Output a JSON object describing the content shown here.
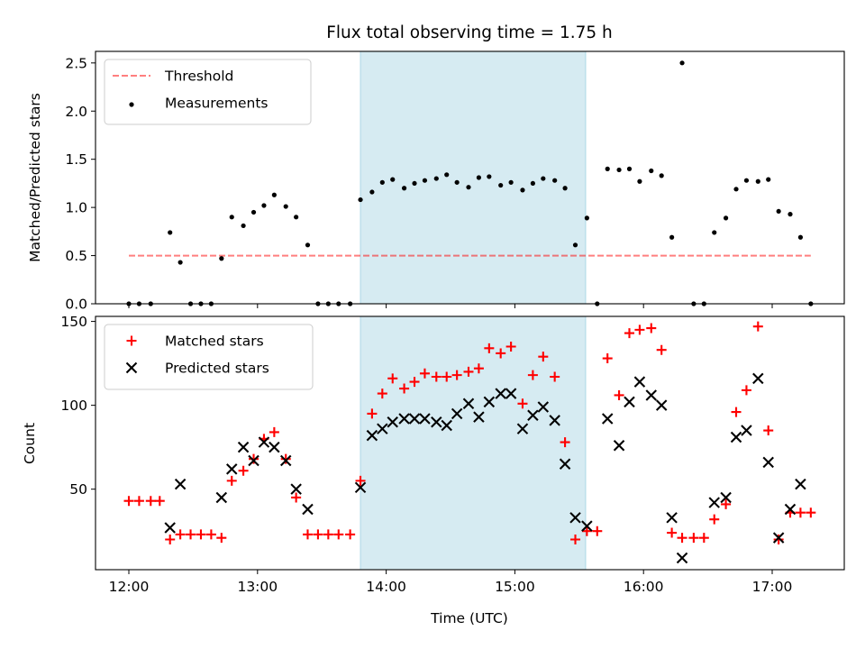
{
  "chart_data": [
    {
      "type": "scatter",
      "title": "Flux total observing time = 1.75 h",
      "xlabel": "",
      "ylabel": "Matched/Predicted stars",
      "xlim": [
        11.75,
        17.58
      ],
      "ylim": [
        0,
        2.62
      ],
      "yticks": [
        0.0,
        0.5,
        1.0,
        1.5,
        2.0,
        2.5
      ],
      "ytick_labels": [
        "0.0",
        "0.5",
        "1.0",
        "1.5",
        "2.0",
        "2.5"
      ],
      "highlight_span": {
        "x_start": 13.8,
        "x_end": 15.55,
        "color": "#add8e6"
      },
      "threshold": {
        "name": "Threshold",
        "value": 0.5,
        "x_start": 12.0,
        "x_end": 17.3,
        "color": "#ff0000"
      },
      "series": [
        {
          "name": "Measurements",
          "marker": "dot",
          "color": "#000000",
          "points": [
            [
              12.0,
              0.0
            ],
            [
              12.08,
              0.0
            ],
            [
              12.17,
              0.0
            ],
            [
              12.32,
              0.74
            ],
            [
              12.4,
              0.43
            ],
            [
              12.48,
              0.0
            ],
            [
              12.56,
              0.0
            ],
            [
              12.64,
              0.0
            ],
            [
              12.72,
              0.47
            ],
            [
              12.8,
              0.9
            ],
            [
              12.89,
              0.81
            ],
            [
              12.97,
              0.95
            ],
            [
              13.05,
              1.02
            ],
            [
              13.13,
              1.13
            ],
            [
              13.22,
              1.01
            ],
            [
              13.3,
              0.9
            ],
            [
              13.39,
              0.61
            ],
            [
              13.47,
              0.0
            ],
            [
              13.55,
              0.0
            ],
            [
              13.63,
              0.0
            ],
            [
              13.72,
              0.0
            ],
            [
              13.8,
              1.08
            ],
            [
              13.89,
              1.16
            ],
            [
              13.97,
              1.26
            ],
            [
              14.05,
              1.29
            ],
            [
              14.14,
              1.2
            ],
            [
              14.22,
              1.25
            ],
            [
              14.3,
              1.28
            ],
            [
              14.39,
              1.3
            ],
            [
              14.47,
              1.34
            ],
            [
              14.55,
              1.26
            ],
            [
              14.64,
              1.21
            ],
            [
              14.72,
              1.31
            ],
            [
              14.8,
              1.32
            ],
            [
              14.89,
              1.23
            ],
            [
              14.97,
              1.26
            ],
            [
              15.06,
              1.18
            ],
            [
              15.14,
              1.25
            ],
            [
              15.22,
              1.3
            ],
            [
              15.31,
              1.28
            ],
            [
              15.39,
              1.2
            ],
            [
              15.47,
              0.61
            ],
            [
              15.56,
              0.89
            ],
            [
              15.64,
              0.0
            ],
            [
              15.72,
              1.4
            ],
            [
              15.81,
              1.39
            ],
            [
              15.89,
              1.4
            ],
            [
              15.97,
              1.27
            ],
            [
              16.06,
              1.38
            ],
            [
              16.14,
              1.33
            ],
            [
              16.22,
              0.69
            ],
            [
              16.3,
              2.5
            ],
            [
              16.39,
              0.0
            ],
            [
              16.47,
              0.0
            ],
            [
              16.55,
              0.74
            ],
            [
              16.64,
              0.89
            ],
            [
              16.72,
              1.19
            ],
            [
              16.8,
              1.28
            ],
            [
              16.89,
              1.27
            ],
            [
              16.97,
              1.29
            ],
            [
              17.05,
              0.96
            ],
            [
              17.14,
              0.93
            ],
            [
              17.22,
              0.69
            ],
            [
              17.3,
              0.0
            ]
          ]
        }
      ],
      "legend": {
        "position": "top-left",
        "entries": [
          "Threshold",
          "Measurements"
        ]
      }
    },
    {
      "type": "scatter",
      "title": "",
      "xlabel": "Time (UTC)",
      "ylabel": "Count",
      "xlim": [
        11.75,
        17.58
      ],
      "ylim": [
        2,
        153
      ],
      "yticks": [
        50,
        100,
        150
      ],
      "ytick_labels": [
        "50",
        "100",
        "150"
      ],
      "xticks": [
        12,
        13,
        14,
        15,
        16,
        17
      ],
      "xtick_labels": [
        "12:00",
        "13:00",
        "14:00",
        "15:00",
        "16:00",
        "17:00"
      ],
      "highlight_span": {
        "x_start": 13.8,
        "x_end": 15.55,
        "color": "#add8e6"
      },
      "series": [
        {
          "name": "Matched stars",
          "marker": "plus",
          "color": "#ff0000",
          "points": [
            [
              12.0,
              43
            ],
            [
              12.08,
              43
            ],
            [
              12.17,
              43
            ],
            [
              12.24,
              43
            ],
            [
              12.32,
              20
            ],
            [
              12.4,
              23
            ],
            [
              12.48,
              23
            ],
            [
              12.56,
              23
            ],
            [
              12.64,
              23
            ],
            [
              12.72,
              21
            ],
            [
              12.8,
              55
            ],
            [
              12.89,
              61
            ],
            [
              12.97,
              68
            ],
            [
              13.05,
              80
            ],
            [
              13.13,
              84
            ],
            [
              13.22,
              68
            ],
            [
              13.3,
              45
            ],
            [
              13.39,
              23
            ],
            [
              13.47,
              23
            ],
            [
              13.55,
              23
            ],
            [
              13.63,
              23
            ],
            [
              13.72,
              23
            ],
            [
              13.8,
              55
            ],
            [
              13.89,
              95
            ],
            [
              13.97,
              107
            ],
            [
              14.05,
              116
            ],
            [
              14.14,
              110
            ],
            [
              14.22,
              114
            ],
            [
              14.3,
              119
            ],
            [
              14.39,
              117
            ],
            [
              14.47,
              117
            ],
            [
              14.55,
              118
            ],
            [
              14.64,
              120
            ],
            [
              14.72,
              122
            ],
            [
              14.8,
              134
            ],
            [
              14.89,
              131
            ],
            [
              14.97,
              135
            ],
            [
              15.06,
              101
            ],
            [
              15.14,
              118
            ],
            [
              15.22,
              129
            ],
            [
              15.31,
              117
            ],
            [
              15.39,
              78
            ],
            [
              15.47,
              20
            ],
            [
              15.56,
              25
            ],
            [
              15.64,
              25
            ],
            [
              15.72,
              128
            ],
            [
              15.81,
              106
            ],
            [
              15.89,
              143
            ],
            [
              15.97,
              145
            ],
            [
              16.06,
              146
            ],
            [
              16.14,
              133
            ],
            [
              16.22,
              24
            ],
            [
              16.3,
              21
            ],
            [
              16.39,
              21
            ],
            [
              16.47,
              21
            ],
            [
              16.55,
              32
            ],
            [
              16.64,
              41
            ],
            [
              16.72,
              96
            ],
            [
              16.8,
              109
            ],
            [
              16.89,
              147
            ],
            [
              16.97,
              85
            ],
            [
              17.05,
              20
            ],
            [
              17.14,
              36
            ],
            [
              17.22,
              36
            ],
            [
              17.3,
              36
            ]
          ]
        },
        {
          "name": "Predicted stars",
          "marker": "x",
          "color": "#000000",
          "points": [
            [
              12.32,
              27
            ],
            [
              12.4,
              53
            ],
            [
              12.72,
              45
            ],
            [
              12.8,
              62
            ],
            [
              12.89,
              75
            ],
            [
              12.97,
              67
            ],
            [
              13.05,
              78
            ],
            [
              13.13,
              75
            ],
            [
              13.22,
              67
            ],
            [
              13.3,
              50
            ],
            [
              13.39,
              38
            ],
            [
              13.8,
              51
            ],
            [
              13.89,
              82
            ],
            [
              13.97,
              86
            ],
            [
              14.05,
              90
            ],
            [
              14.14,
              92
            ],
            [
              14.22,
              92
            ],
            [
              14.3,
              92
            ],
            [
              14.39,
              90
            ],
            [
              14.47,
              88
            ],
            [
              14.55,
              95
            ],
            [
              14.64,
              101
            ],
            [
              14.72,
              93
            ],
            [
              14.8,
              102
            ],
            [
              14.89,
              107
            ],
            [
              14.97,
              107
            ],
            [
              15.06,
              86
            ],
            [
              15.14,
              94
            ],
            [
              15.22,
              99
            ],
            [
              15.31,
              91
            ],
            [
              15.39,
              65
            ],
            [
              15.47,
              33
            ],
            [
              15.56,
              28
            ],
            [
              15.72,
              92
            ],
            [
              15.81,
              76
            ],
            [
              15.89,
              102
            ],
            [
              15.97,
              114
            ],
            [
              16.06,
              106
            ],
            [
              16.14,
              100
            ],
            [
              16.22,
              33
            ],
            [
              16.3,
              9
            ],
            [
              16.55,
              42
            ],
            [
              16.64,
              45
            ],
            [
              16.72,
              81
            ],
            [
              16.8,
              85
            ],
            [
              16.89,
              116
            ],
            [
              16.97,
              66
            ],
            [
              17.05,
              21
            ],
            [
              17.14,
              38
            ],
            [
              17.22,
              53
            ]
          ]
        }
      ],
      "legend": {
        "position": "top-left",
        "entries": [
          "Matched stars",
          "Predicted stars"
        ]
      }
    }
  ]
}
